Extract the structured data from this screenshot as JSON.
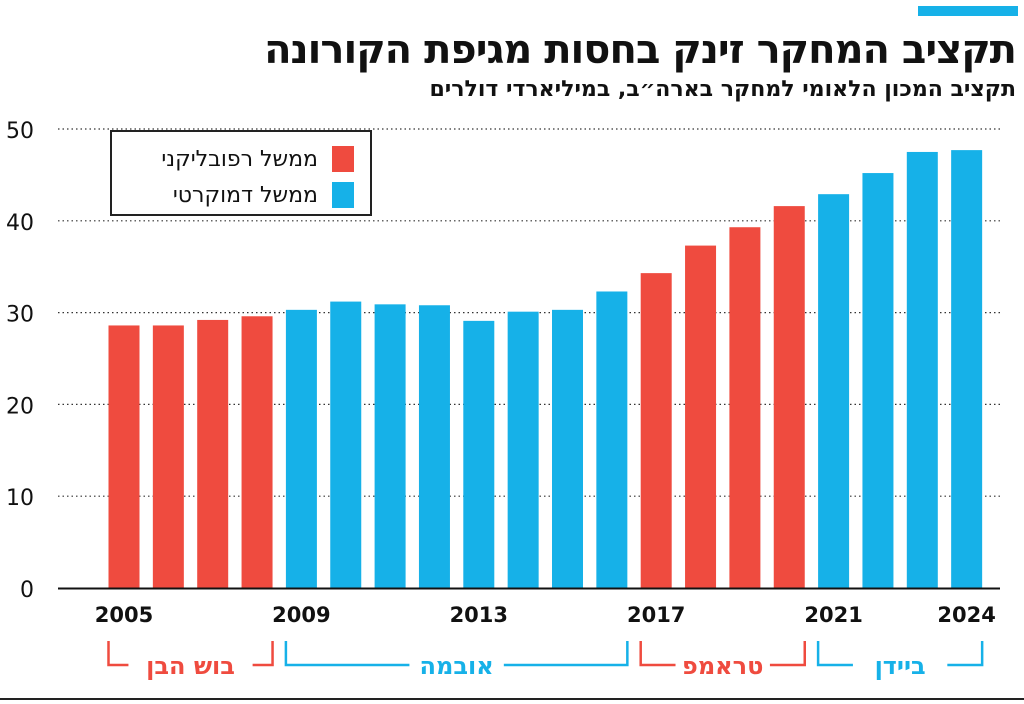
{
  "header": {
    "title": "תקציב המחקר זינק בחסות מגיפת הקורונה",
    "subtitle": "תקציב המכון הלאומי למחקר בארה״ב, במיליארדי דולרים"
  },
  "colors": {
    "republican": "#ef4b3f",
    "democratic": "#16b1e8",
    "accent": "#16b1e8",
    "grid": "#333333"
  },
  "legend": {
    "placement": "top-left",
    "items": [
      {
        "label": "ממשל רפובליקני",
        "color": "#ef4b3f"
      },
      {
        "label": "ממשל דמוקרטי",
        "color": "#16b1e8"
      }
    ]
  },
  "chart_data": {
    "type": "bar",
    "title": "תקציב המחקר זינק בחסות מגיפת הקורונה",
    "subtitle": "תקציב המכון הלאומי למחקר בארה״ב, במיליארדי דולרים",
    "categories": [
      "2005",
      "2006",
      "2007",
      "2008",
      "2009",
      "2010",
      "2011",
      "2012",
      "2013",
      "2014",
      "2015",
      "2016",
      "2017",
      "2018",
      "2019",
      "2020",
      "2021",
      "2022",
      "2023",
      "2024"
    ],
    "values": [
      28.6,
      28.6,
      29.2,
      29.6,
      30.3,
      31.2,
      30.9,
      30.8,
      29.1,
      30.1,
      30.3,
      32.3,
      34.3,
      37.3,
      39.3,
      41.6,
      42.9,
      45.2,
      47.5,
      47.7
    ],
    "party": [
      "R",
      "R",
      "R",
      "R",
      "D",
      "D",
      "D",
      "D",
      "D",
      "D",
      "D",
      "D",
      "R",
      "R",
      "R",
      "R",
      "D",
      "D",
      "D",
      "D"
    ],
    "xticks": [
      "2005",
      "2009",
      "2013",
      "2017",
      "2021",
      "2024"
    ],
    "yticks": [
      0,
      10,
      20,
      30,
      40,
      50
    ],
    "ylim": [
      0,
      50
    ],
    "grid": "horizontal dotted",
    "xlabel": "",
    "ylabel": "",
    "administrations": [
      {
        "label": "בוש הבן",
        "from": "2005",
        "to": "2008",
        "party": "R"
      },
      {
        "label": "אובמה",
        "from": "2009",
        "to": "2016",
        "party": "D"
      },
      {
        "label": "טראמפ",
        "from": "2017",
        "to": "2020",
        "party": "R"
      },
      {
        "label": "ביידן",
        "from": "2021",
        "to": "2024",
        "party": "D"
      }
    ]
  }
}
